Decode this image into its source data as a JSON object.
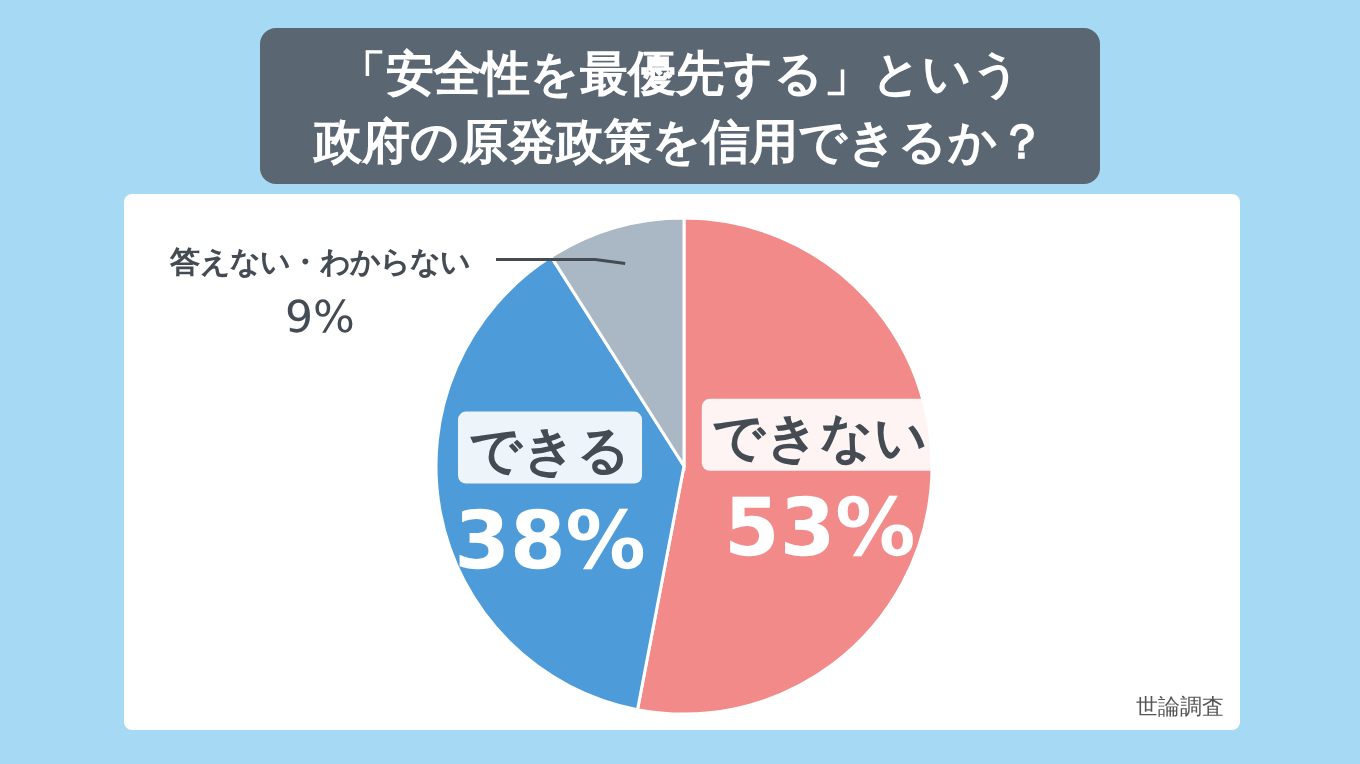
{
  "chart_data": {
    "type": "pie",
    "title": "「安全性を最優先する」という",
    "subtitle": "政府の原発政策を信用できるか？",
    "categories": [
      "できない",
      "できる",
      "答えない・わからない"
    ],
    "values": [
      53,
      38,
      9
    ],
    "value_labels": [
      "53%",
      "38%",
      "9%"
    ],
    "colors": [
      "#f28a8a",
      "#4d9bd8",
      "#a9b8c4"
    ],
    "annotations": [
      "世論調査"
    ]
  }
}
